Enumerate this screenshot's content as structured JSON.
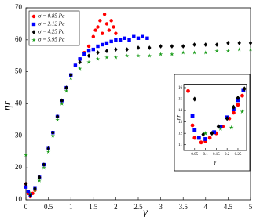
{
  "chart_data": [
    {
      "type": "scatter",
      "xlabel": "γ",
      "ylabel": "ηr",
      "xlim": [
        0,
        5
      ],
      "xticks": [
        0,
        0.5,
        1,
        1.5,
        2,
        2.5,
        3,
        3.5,
        4,
        4.5,
        5
      ],
      "ylim": [
        10,
        70
      ],
      "yticks": [
        10,
        20,
        30,
        40,
        50,
        60,
        70
      ],
      "legend": "upper left",
      "series": [
        {
          "name": "σ = 0.85 Pa",
          "color": "#ff0000",
          "marker": "circle",
          "x": [
            0,
            0.05,
            0.1,
            0.15,
            0.2,
            0.3,
            0.4,
            0.5,
            0.6,
            0.7,
            0.8,
            0.9,
            1.0,
            1.1,
            1.2,
            1.3,
            1.4,
            1.5,
            1.55,
            1.6,
            1.65,
            1.7,
            1.75,
            1.8,
            1.85,
            1.9,
            1.95,
            2.0
          ],
          "values": [
            15,
            12,
            11,
            12,
            13,
            17,
            21,
            26,
            31,
            36,
            41,
            45,
            49,
            52,
            54,
            56,
            58,
            61,
            63,
            64,
            66,
            62,
            68,
            65,
            63,
            66,
            64,
            62
          ]
        },
        {
          "name": "σ = 2.12 Pa",
          "color": "#0000ff",
          "marker": "square",
          "x": [
            0,
            0.05,
            0.1,
            0.2,
            0.3,
            0.4,
            0.5,
            0.6,
            0.7,
            0.8,
            0.9,
            1.0,
            1.1,
            1.2,
            1.3,
            1.4,
            1.5,
            1.6,
            1.7,
            1.8,
            1.9,
            2.0,
            2.1,
            2.2,
            2.3,
            2.4,
            2.5,
            2.6,
            2.7
          ],
          "values": [
            14,
            12.5,
            11.5,
            13.5,
            17,
            21,
            26,
            31,
            36,
            41,
            45,
            49,
            52,
            54,
            55.5,
            56.5,
            57,
            58,
            58.5,
            59,
            59.5,
            60,
            60,
            60.5,
            60,
            61,
            60.5,
            61,
            60.5
          ]
        },
        {
          "name": "σ = 4.25 Pa",
          "color": "#000000",
          "marker": "diamond",
          "x": [
            0,
            0.1,
            0.2,
            0.3,
            0.4,
            0.5,
            0.6,
            0.7,
            0.8,
            0.9,
            1.0,
            1.2,
            1.4,
            1.6,
            1.8,
            2.0,
            2.25,
            2.5,
            2.75,
            3.0,
            3.25,
            3.5,
            3.75,
            4.0,
            4.25,
            4.5,
            4.75,
            5.0
          ],
          "values": [
            15,
            11.5,
            13.5,
            17,
            21,
            26,
            31,
            36,
            41,
            45,
            49,
            53,
            55,
            56,
            56.5,
            57,
            57,
            57.5,
            57.5,
            58,
            58,
            58,
            58.5,
            58.5,
            58.5,
            59,
            59,
            59
          ]
        },
        {
          "name": "σ = 5.95 Pa",
          "color": "#1a9c1a",
          "marker": "star",
          "x": [
            0,
            0.1,
            0.2,
            0.3,
            0.4,
            0.5,
            0.6,
            0.7,
            0.8,
            0.9,
            1.0,
            1.2,
            1.4,
            1.6,
            1.8,
            2.0,
            2.25,
            2.5,
            2.75,
            3.0,
            3.25,
            3.5,
            3.75,
            4.0,
            4.25,
            4.5,
            4.75,
            5.0
          ],
          "values": [
            24,
            12,
            13,
            16,
            20,
            25,
            30,
            35,
            40,
            44,
            48,
            51,
            53,
            54,
            54.5,
            54.5,
            55,
            55,
            55,
            55.5,
            55.5,
            56,
            56,
            56,
            56.5,
            56.5,
            57,
            57
          ]
        }
      ]
    },
    {
      "type": "scatter",
      "xlabel": "γ",
      "ylabel": "ηr",
      "xlim": [
        0,
        0.29
      ],
      "xticks": [
        0.05,
        0.1,
        0.15,
        0.2,
        0.25
      ],
      "ylim": [
        10.5,
        16.3
      ],
      "yticks": [
        11,
        12,
        13,
        14,
        15,
        16
      ],
      "series": [
        {
          "color": "#ff0000",
          "marker": "circle",
          "x": [
            0.02,
            0.04,
            0.05,
            0.08,
            0.1,
            0.12,
            0.15,
            0.18,
            0.21,
            0.23,
            0.25,
            0.27
          ],
          "values": [
            15.7,
            12.7,
            11.6,
            11.2,
            11.3,
            11.6,
            12.0,
            12.6,
            13.3,
            13.8,
            14.5,
            15.3
          ]
        },
        {
          "color": "#0000ff",
          "marker": "square",
          "x": [
            0.04,
            0.05,
            0.07,
            0.1,
            0.14,
            0.17,
            0.2,
            0.23,
            0.25,
            0.275
          ],
          "values": [
            13.5,
            12.3,
            11.6,
            11.5,
            12.1,
            12.6,
            13.4,
            14.1,
            14.9,
            15.8
          ]
        },
        {
          "color": "#000000",
          "marker": "diamond",
          "x": [
            0.05,
            0.09,
            0.13,
            0.16,
            0.2,
            0.23,
            0.25,
            0.28
          ],
          "values": [
            15.0,
            11.9,
            12.0,
            12.6,
            13.3,
            14.3,
            15.1,
            15.9
          ]
        },
        {
          "color": "#1a9c1a",
          "marker": "star",
          "x": [
            0.1,
            0.17,
            0.22,
            0.27
          ],
          "values": [
            12.0,
            12.4,
            12.5,
            13.9
          ]
        }
      ]
    }
  ]
}
